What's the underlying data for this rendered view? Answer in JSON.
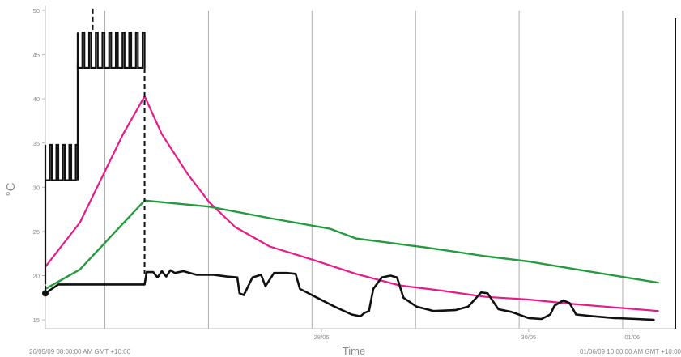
{
  "chart_data": {
    "type": "line",
    "title": "",
    "xlabel": "Time",
    "ylabel": "°C",
    "ylim": [
      14,
      50
    ],
    "yticks": [
      15,
      20,
      25,
      30,
      35,
      40,
      45,
      50
    ],
    "x_start_label": "26/05/09 08:00:00 AM GMT +10:00",
    "x_end_label": "01/06/09 10:00:00 AM GMT +10:00",
    "x_unit": "hours since 26/05/09 08:00",
    "xlim": [
      0,
      146
    ],
    "date_ticks": [
      {
        "x": 64,
        "label": "28/05"
      },
      {
        "x": 112,
        "label": "30/05"
      },
      {
        "x": 136,
        "label": "01/06"
      }
    ],
    "vertical_gridlines_x": [
      13.8,
      37.8,
      61.8,
      85.8,
      109.8,
      133.8
    ],
    "grid": "vertical",
    "legend": "none",
    "series": [
      {
        "color": "#e8198b",
        "points": [
          [
            0,
            21
          ],
          [
            8,
            26
          ],
          [
            18,
            36
          ],
          [
            23,
            40.3
          ],
          [
            27,
            36
          ],
          [
            33,
            31.5
          ],
          [
            38,
            28.3
          ],
          [
            44,
            25.5
          ],
          [
            52,
            23.3
          ],
          [
            62,
            21.8
          ],
          [
            72,
            20.2
          ],
          [
            82,
            18.9
          ],
          [
            92,
            18.3
          ],
          [
            102,
            17.6
          ],
          [
            112,
            17.3
          ],
          [
            122,
            16.8
          ],
          [
            132,
            16.4
          ],
          [
            142,
            16
          ]
        ]
      },
      {
        "color": "#239b3e",
        "points": [
          [
            0,
            18.5
          ],
          [
            8,
            20.7
          ],
          [
            23,
            28.5
          ],
          [
            38,
            27.8
          ],
          [
            52,
            26.5
          ],
          [
            66,
            25.3
          ],
          [
            72,
            24.2
          ],
          [
            88,
            23.2
          ],
          [
            102,
            22.2
          ],
          [
            112,
            21.6
          ],
          [
            122,
            20.8
          ],
          [
            132,
            20
          ],
          [
            142,
            19.2
          ]
        ]
      },
      {
        "color": "#111111",
        "points": [
          [
            0,
            18
          ],
          [
            3,
            19
          ],
          [
            6,
            19
          ],
          [
            9,
            19
          ],
          [
            12,
            19
          ],
          [
            15,
            19
          ],
          [
            18,
            19
          ],
          [
            21,
            19
          ],
          [
            23,
            19
          ],
          [
            23.5,
            20.4
          ],
          [
            25,
            20.4
          ],
          [
            26,
            19.8
          ],
          [
            27,
            20.5
          ],
          [
            28,
            19.9
          ],
          [
            29,
            20.6
          ],
          [
            30,
            20.3
          ],
          [
            32,
            20.5
          ],
          [
            35,
            20.1
          ],
          [
            39,
            20.1
          ],
          [
            42,
            19.9
          ],
          [
            44.5,
            19.8
          ],
          [
            45,
            18
          ],
          [
            46,
            17.8
          ],
          [
            48,
            19.8
          ],
          [
            50,
            20.1
          ],
          [
            51,
            18.8
          ],
          [
            53,
            20.3
          ],
          [
            56,
            20.3
          ],
          [
            58,
            20.2
          ],
          [
            59,
            18.5
          ],
          [
            63,
            17.5
          ],
          [
            67,
            16.5
          ],
          [
            71,
            15.6
          ],
          [
            73,
            15.4
          ],
          [
            74,
            15.8
          ],
          [
            75,
            16
          ],
          [
            76,
            18.5
          ],
          [
            78,
            19.8
          ],
          [
            80,
            20
          ],
          [
            81.5,
            19.8
          ],
          [
            83,
            17.5
          ],
          [
            86,
            16.5
          ],
          [
            90,
            16
          ],
          [
            95,
            16.1
          ],
          [
            98,
            16.5
          ],
          [
            101,
            18.1
          ],
          [
            102.5,
            18
          ],
          [
            105,
            16.2
          ],
          [
            108,
            15.9
          ],
          [
            112,
            15.2
          ],
          [
            115,
            15.1
          ],
          [
            117,
            15.6
          ],
          [
            118,
            16.6
          ],
          [
            120,
            17.2
          ],
          [
            121.5,
            16.9
          ],
          [
            123,
            15.6
          ],
          [
            127,
            15.4
          ],
          [
            132,
            15.2
          ],
          [
            137,
            15.1
          ],
          [
            141,
            15
          ]
        ]
      }
    ],
    "step_series": {
      "color": "#111111",
      "dashed_vertical_at_x": [
        0,
        23
      ],
      "segments": [
        {
          "x": [
            0,
            7.5
          ],
          "level": 19,
          "high": 34.8,
          "low": 30.8,
          "pulses": 5
        },
        {
          "x": [
            7.5,
            23
          ],
          "level": 44,
          "high": 47.5,
          "low": 43.5,
          "pulses": 10
        }
      ]
    }
  }
}
